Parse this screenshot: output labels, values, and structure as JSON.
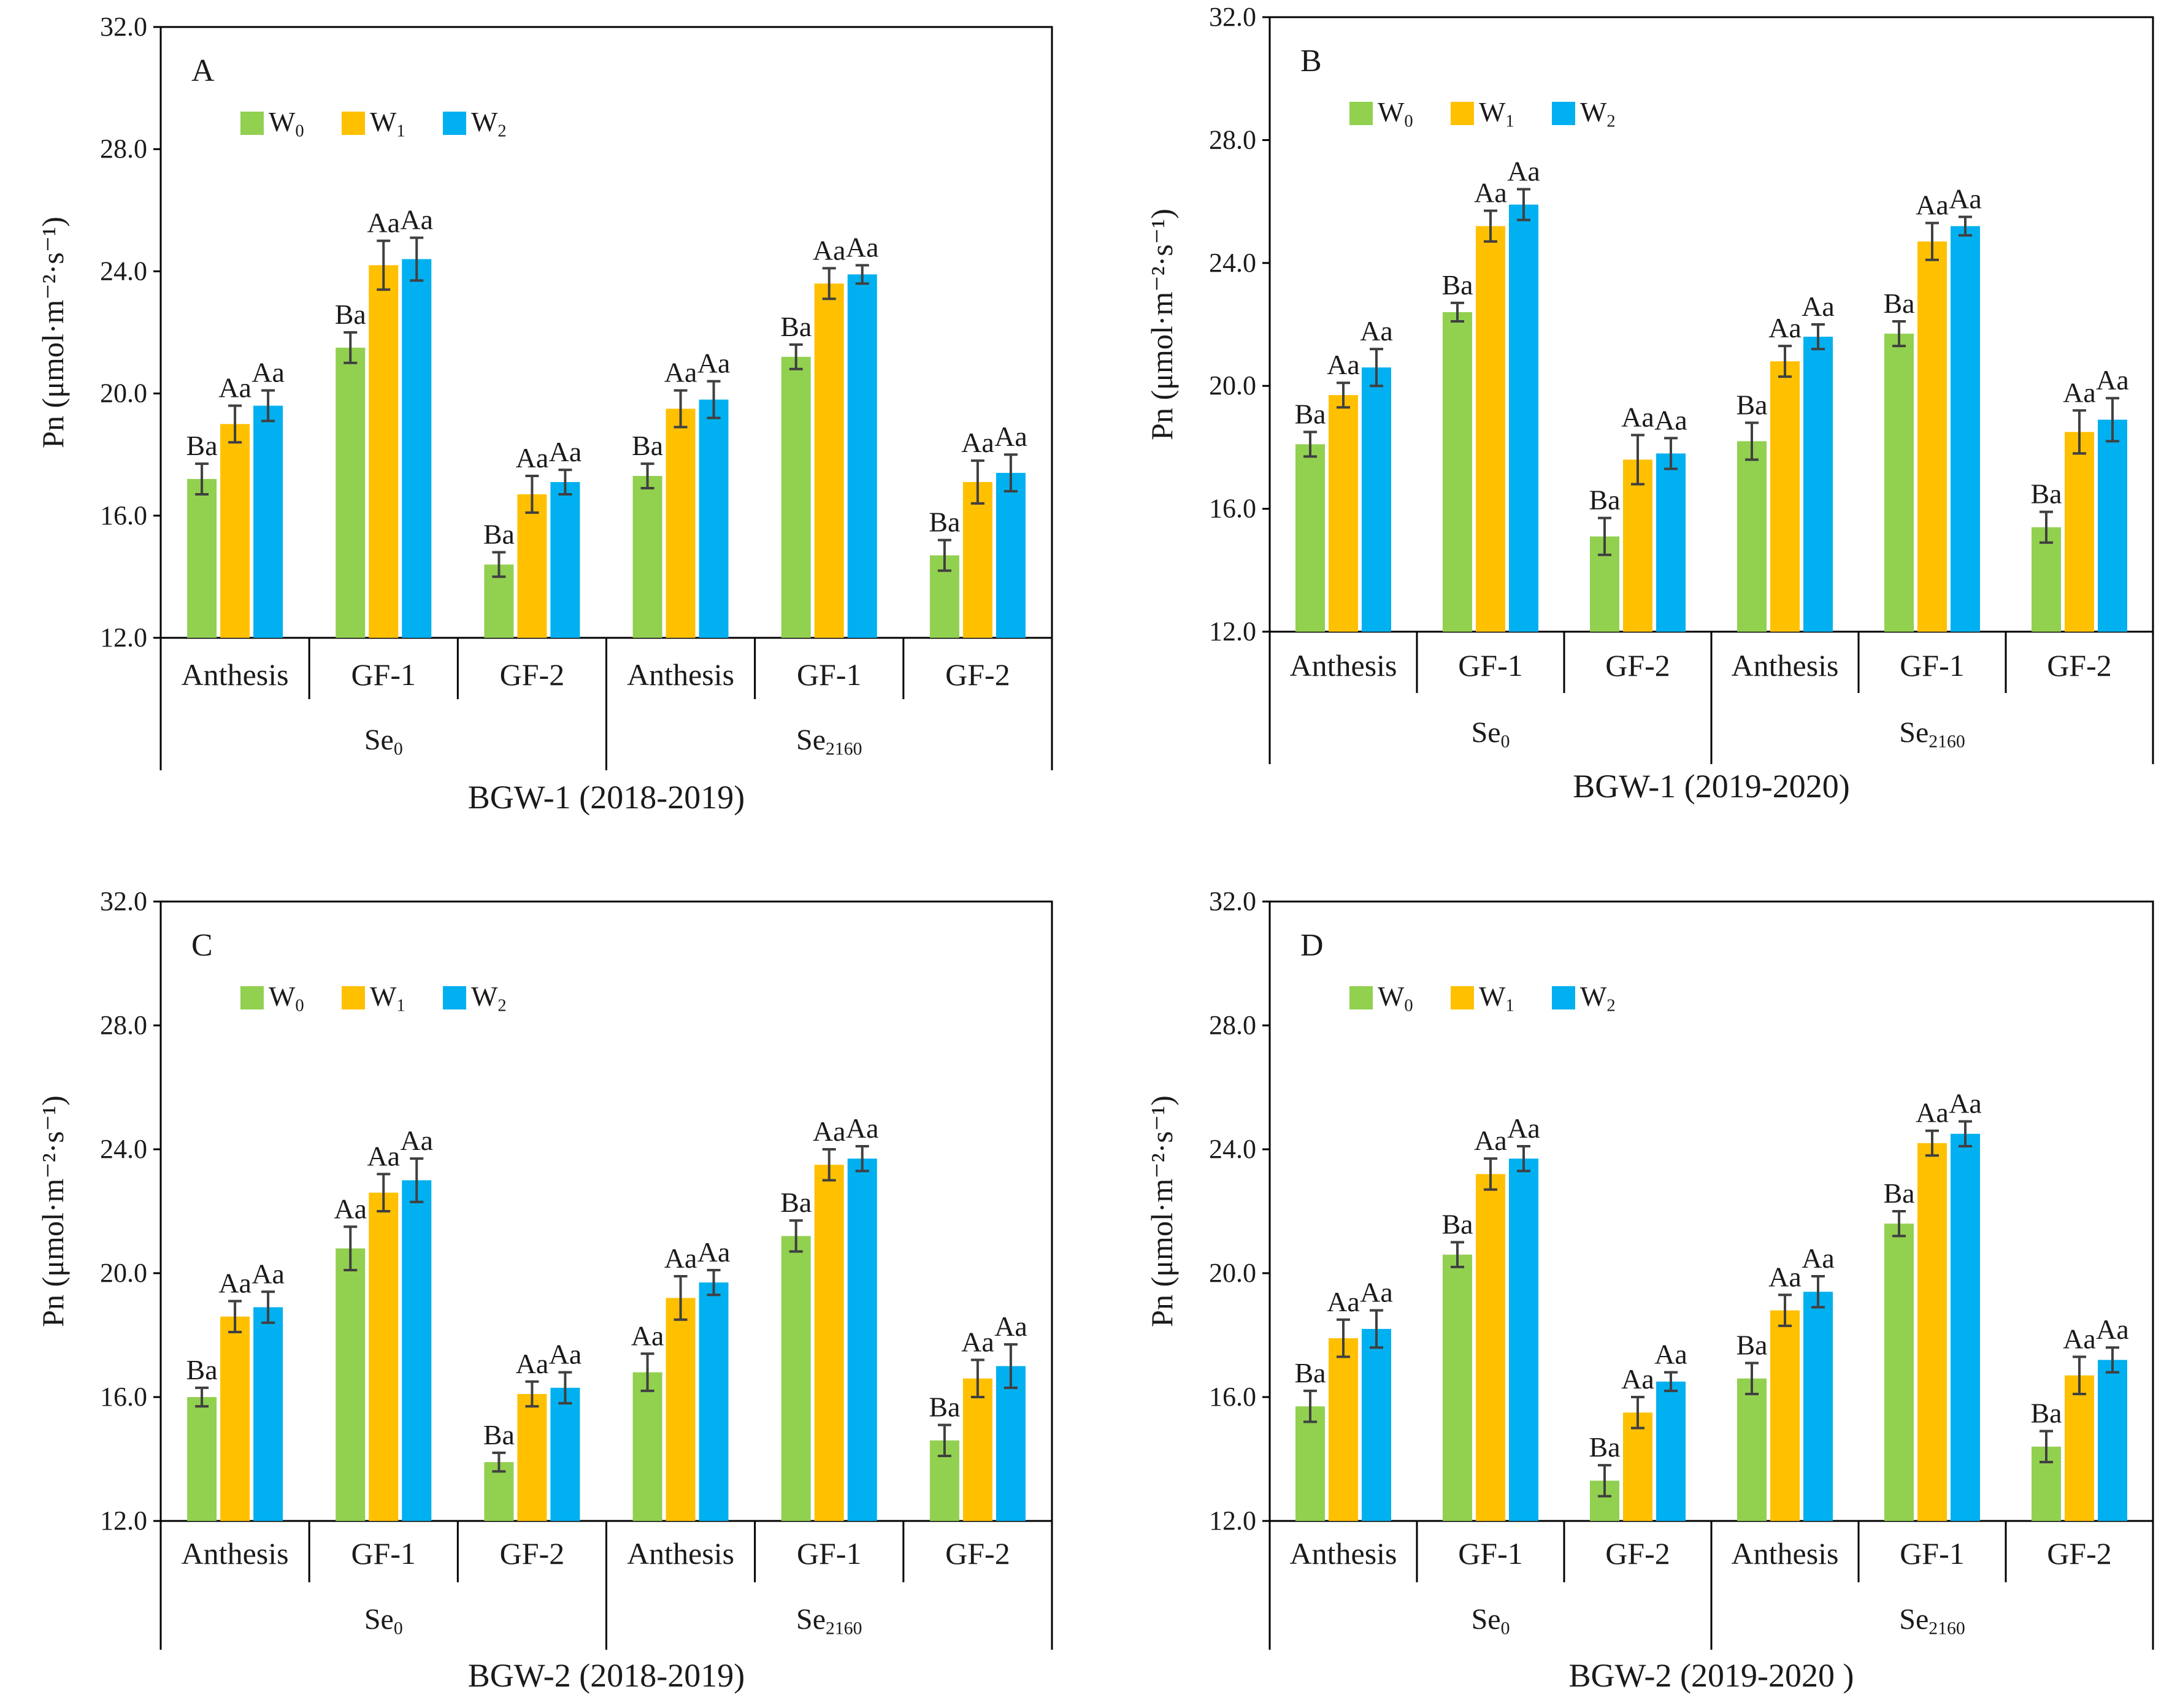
{
  "chart_data": [
    {
      "panel": "A",
      "type": "bar",
      "title": "BGW-1 (2018-2019)",
      "ylabel": "Pn (μmol·m⁻²·s⁻¹)",
      "ylim": [
        12.0,
        32.0
      ],
      "yticks": [
        "12.0",
        "16.0",
        "20.0",
        "24.0",
        "28.0",
        "32.0"
      ],
      "stages": [
        "Anthesis",
        "GF-1",
        "GF-2",
        "Anthesis",
        "GF-1",
        "GF-2"
      ],
      "groups": [
        "Se0",
        "Se2160"
      ],
      "series": [
        {
          "name": "W0",
          "values": [
            17.2,
            21.5,
            14.4,
            17.3,
            21.2,
            14.7
          ],
          "errors": [
            0.5,
            0.5,
            0.4,
            0.4,
            0.4,
            0.5
          ],
          "labels": [
            "Ba",
            "Ba",
            "Ba",
            "Ba",
            "Ba",
            "Ba"
          ]
        },
        {
          "name": "W1",
          "values": [
            19.0,
            24.2,
            16.7,
            19.5,
            23.6,
            17.1
          ],
          "errors": [
            0.6,
            0.8,
            0.6,
            0.6,
            0.5,
            0.7
          ],
          "labels": [
            "Aa",
            "Aa",
            "Aa",
            "Aa",
            "Aa",
            "Aa"
          ]
        },
        {
          "name": "W2",
          "values": [
            19.6,
            24.4,
            17.1,
            19.8,
            23.9,
            17.4
          ],
          "errors": [
            0.5,
            0.7,
            0.4,
            0.6,
            0.3,
            0.6
          ],
          "labels": [
            "Aa",
            "Aa",
            "Aa",
            "Aa",
            "Aa",
            "Aa"
          ]
        }
      ]
    },
    {
      "panel": "B",
      "type": "bar",
      "title": "BGW-1 (2019-2020)",
      "ylabel": "Pn (μmol·m⁻²·s⁻¹)",
      "ylim": [
        12.0,
        32.0
      ],
      "yticks": [
        "12.0",
        "16.0",
        "20.0",
        "24.0",
        "28.0",
        "32.0"
      ],
      "stages": [
        "Anthesis",
        "GF-1",
        "GF-2",
        "Anthesis",
        "GF-1",
        "GF-2"
      ],
      "groups": [
        "Se0",
        "Se2160"
      ],
      "series": [
        {
          "name": "W0",
          "values": [
            18.1,
            22.4,
            15.1,
            18.2,
            21.7,
            15.4
          ],
          "errors": [
            0.4,
            0.3,
            0.6,
            0.6,
            0.4,
            0.5
          ],
          "labels": [
            "Ba",
            "Ba",
            "Ba",
            "Ba",
            "Ba",
            "Ba"
          ]
        },
        {
          "name": "W1",
          "values": [
            19.7,
            25.2,
            17.6,
            20.8,
            24.7,
            18.5
          ],
          "errors": [
            0.4,
            0.5,
            0.8,
            0.5,
            0.6,
            0.7
          ],
          "labels": [
            "Aa",
            "Aa",
            "Aa",
            "Aa",
            "Aa",
            "Aa"
          ]
        },
        {
          "name": "W2",
          "values": [
            20.6,
            25.9,
            17.8,
            21.6,
            25.2,
            18.9
          ],
          "errors": [
            0.6,
            0.5,
            0.5,
            0.4,
            0.3,
            0.7
          ],
          "labels": [
            "Aa",
            "Aa",
            "Aa",
            "Aa",
            "Aa",
            "Aa"
          ]
        }
      ]
    },
    {
      "panel": "C",
      "type": "bar",
      "title": "BGW-2 (2018-2019)",
      "ylabel": "Pn (μmol·m⁻²·s⁻¹)",
      "ylim": [
        12.0,
        32.0
      ],
      "yticks": [
        "12.0",
        "16.0",
        "20.0",
        "24.0",
        "28.0",
        "32.0"
      ],
      "stages": [
        "Anthesis",
        "GF-1",
        "GF-2",
        "Anthesis",
        "GF-1",
        "GF-2"
      ],
      "groups": [
        "Se0",
        "Se2160"
      ],
      "series": [
        {
          "name": "W0",
          "values": [
            16.0,
            20.8,
            13.9,
            16.8,
            21.2,
            14.6
          ],
          "errors": [
            0.3,
            0.7,
            0.3,
            0.6,
            0.5,
            0.5
          ],
          "labels": [
            "Ba",
            "Aa",
            "Ba",
            "Aa",
            "Ba",
            "Ba"
          ]
        },
        {
          "name": "W1",
          "values": [
            18.6,
            22.6,
            16.1,
            19.2,
            23.5,
            16.6
          ],
          "errors": [
            0.5,
            0.6,
            0.4,
            0.7,
            0.5,
            0.6
          ],
          "labels": [
            "Aa",
            "Aa",
            "Aa",
            "Aa",
            "Aa",
            "Aa"
          ]
        },
        {
          "name": "W2",
          "values": [
            18.9,
            23.0,
            16.3,
            19.7,
            23.7,
            17.0
          ],
          "errors": [
            0.5,
            0.7,
            0.5,
            0.4,
            0.4,
            0.7
          ],
          "labels": [
            "Aa",
            "Aa",
            "Aa",
            "Aa",
            "Aa",
            "Aa"
          ]
        }
      ]
    },
    {
      "panel": "D",
      "type": "bar",
      "title": "BGW-2 (2019-2020 )",
      "ylabel": "Pn (μmol·m⁻²·s⁻¹)",
      "ylim": [
        12.0,
        32.0
      ],
      "yticks": [
        "12.0",
        "16.0",
        "20.0",
        "24.0",
        "28.0",
        "32.0"
      ],
      "stages": [
        "Anthesis",
        "GF-1",
        "GF-2",
        "Anthesis",
        "GF-1",
        "GF-2"
      ],
      "groups": [
        "Se0",
        "Se2160"
      ],
      "series": [
        {
          "name": "W0",
          "values": [
            15.7,
            20.6,
            13.3,
            16.6,
            21.6,
            14.4
          ],
          "errors": [
            0.5,
            0.4,
            0.5,
            0.5,
            0.4,
            0.5
          ],
          "labels": [
            "Ba",
            "Ba",
            "Ba",
            "Ba",
            "Ba",
            "Ba"
          ]
        },
        {
          "name": "W1",
          "values": [
            17.9,
            23.2,
            15.5,
            18.8,
            24.2,
            16.7
          ],
          "errors": [
            0.6,
            0.5,
            0.5,
            0.5,
            0.4,
            0.6
          ],
          "labels": [
            "Aa",
            "Aa",
            "Aa",
            "Aa",
            "Aa",
            "Aa"
          ]
        },
        {
          "name": "W2",
          "values": [
            18.2,
            23.7,
            16.5,
            19.4,
            24.5,
            17.2
          ],
          "errors": [
            0.6,
            0.4,
            0.3,
            0.5,
            0.4,
            0.4
          ],
          "labels": [
            "Aa",
            "Aa",
            "Aa",
            "Aa",
            "Aa",
            "Aa"
          ]
        }
      ]
    }
  ],
  "legend_colors": {
    "W0": "#92d050",
    "W1": "#ffc000",
    "W2": "#00b0f0"
  }
}
